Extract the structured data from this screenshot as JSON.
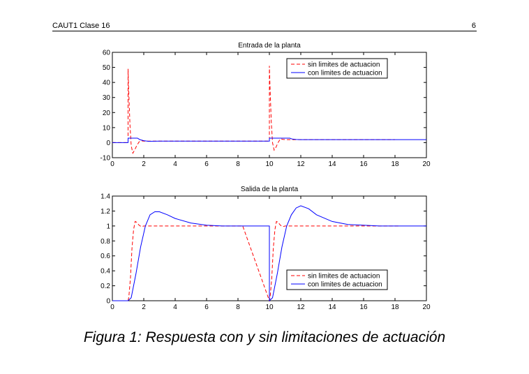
{
  "header": {
    "left": "CAUT1 Clase 16",
    "right": "6"
  },
  "caption": "Figura 1: Respuesta con y sin limitaciones de actuación",
  "colors": {
    "sin": "#ff0000",
    "con": "#0000ff"
  },
  "chart_data": [
    {
      "type": "line",
      "title": "Entrada de la planta",
      "xlim": [
        0,
        20
      ],
      "ylim": [
        -10,
        60
      ],
      "xticks": [
        0,
        2,
        4,
        6,
        8,
        10,
        12,
        14,
        16,
        18,
        20
      ],
      "yticks": [
        -10,
        0,
        10,
        20,
        30,
        40,
        50,
        60
      ],
      "legend": "top-right",
      "series": [
        {
          "name": "sin limites de actuacion",
          "style": "dashed",
          "color": "#ff0000",
          "x": [
            0,
            1,
            1,
            1.03,
            1.12,
            1.2,
            1.3,
            1.42,
            1.55,
            1.7,
            1.85,
            2,
            2.2,
            10,
            10,
            10.03,
            10.12,
            10.2,
            10.3,
            10.42,
            10.55,
            10.7,
            10.85,
            11,
            11.2,
            18
          ],
          "y": [
            0,
            0,
            49,
            38,
            12,
            -2,
            -7,
            -5,
            -2,
            0.5,
            1.2,
            1,
            1,
            1,
            51,
            40,
            14,
            0,
            -5,
            -3,
            0,
            2.5,
            2.2,
            2,
            2,
            2
          ]
        },
        {
          "name": "con limites de actuacion",
          "style": "solid",
          "color": "#0000ff",
          "x": [
            0,
            1,
            1,
            1.6,
            1.75,
            2,
            2.3,
            3,
            10,
            10,
            11.3,
            11.45,
            11.7,
            12,
            20
          ],
          "y": [
            0,
            0,
            3,
            3,
            2,
            1.3,
            0.9,
            1,
            1,
            3,
            3,
            2.4,
            2.1,
            2,
            2
          ]
        }
      ]
    },
    {
      "type": "line",
      "title": "Salida de la planta",
      "xlim": [
        0,
        20
      ],
      "ylim": [
        0,
        1.4
      ],
      "xticks": [
        0,
        2,
        4,
        6,
        8,
        10,
        12,
        14,
        16,
        18,
        20
      ],
      "yticks": [
        0,
        0.2,
        0.4,
        0.6,
        0.8,
        1,
        1.2,
        1.4
      ],
      "legend": "bottom-right",
      "series": [
        {
          "name": "sin limites de actuacion",
          "style": "dashed",
          "color": "#ff0000",
          "x": [
            1,
            1.05,
            1.15,
            1.25,
            1.35,
            1.45,
            1.55,
            1.7,
            1.85,
            2,
            8.3,
            10,
            10.05,
            10.15,
            10.25,
            10.35,
            10.45,
            10.55,
            10.7,
            10.85,
            11,
            18.3
          ],
          "y": [
            0,
            0.05,
            0.3,
            0.7,
            0.95,
            1.06,
            1.05,
            1.01,
            0.99,
            1,
            1,
            0,
            0.05,
            0.3,
            0.7,
            0.95,
            1.06,
            1.05,
            1.01,
            0.99,
            1,
            1
          ]
        },
        {
          "name": "con limites de actuacion",
          "style": "solid",
          "color": "#0000ff",
          "x": [
            0,
            1,
            1.2,
            1.5,
            1.8,
            2.1,
            2.4,
            2.7,
            3,
            3.5,
            4,
            5,
            6,
            7,
            8,
            9,
            10,
            10,
            10.2,
            10.5,
            10.8,
            11.1,
            11.4,
            11.7,
            12,
            12.5,
            13,
            14,
            15,
            16,
            17,
            18,
            19,
            20
          ],
          "y": [
            0,
            0,
            0.04,
            0.36,
            0.72,
            1.0,
            1.15,
            1.19,
            1.19,
            1.15,
            1.1,
            1.04,
            1.01,
            1.0,
            1.0,
            1.0,
            1.0,
            0,
            0.04,
            0.36,
            0.72,
            1.0,
            1.15,
            1.24,
            1.27,
            1.23,
            1.15,
            1.06,
            1.02,
            1.01,
            1.0,
            1.0,
            1.0,
            1.0
          ]
        }
      ]
    }
  ]
}
